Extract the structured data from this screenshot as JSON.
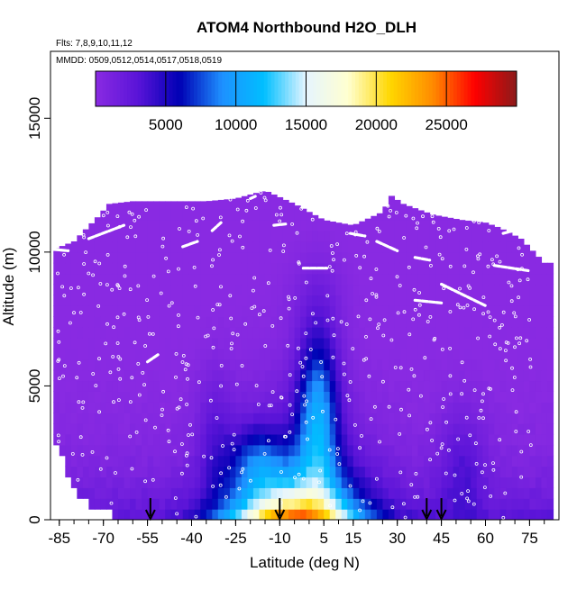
{
  "chart_data": {
    "type": "heatmap",
    "title": "ATOM4 Northbound H2O_DLH",
    "subtitle_flights": "Flts: 7,8,9,10,11,12",
    "subtitle_dates": "MMDD: 0509,0512,0514,0517,0518,0519",
    "xlabel": "Latitude (deg N)",
    "ylabel": "Altitude (m)",
    "xlim": [
      -88,
      85
    ],
    "ylim": [
      0,
      17500
    ],
    "x_ticks": [
      -85,
      -70,
      -55,
      -40,
      -25,
      -10,
      5,
      15,
      30,
      45,
      60,
      75
    ],
    "x_tick_labels": [
      "-85",
      "-70",
      "-55",
      "-40",
      "-25",
      "-10",
      "5",
      "15",
      "30",
      "45",
      "60",
      "75"
    ],
    "y_ticks": [
      0,
      5000,
      10000,
      15000
    ],
    "y_tick_labels": [
      "0",
      "5000",
      "10000",
      "15000"
    ],
    "colorbar": {
      "range": [
        0,
        30000
      ],
      "ticks": [
        5000,
        10000,
        15000,
        20000,
        25000
      ],
      "tick_labels": [
        "5000",
        "10000",
        "15000",
        "20000",
        "25000"
      ],
      "colors": [
        "#8a2be2",
        "#5a14d8",
        "#0000b4",
        "#1e90ff",
        "#00bfff",
        "#e6f5ff",
        "#ffffd0",
        "#ffd700",
        "#ff8c00",
        "#ff0000",
        "#8b1a1a"
      ]
    },
    "grid": false,
    "legend": "colorbar at top",
    "arrow_latitudes": [
      -54,
      -10,
      40,
      45
    ],
    "profile_envelope": [
      [
        -87,
        10100
      ],
      [
        -80,
        10400
      ],
      [
        -72,
        11300
      ],
      [
        -68,
        11800
      ],
      [
        -60,
        11900
      ],
      [
        -45,
        11900
      ],
      [
        -35,
        11900
      ],
      [
        -25,
        12000
      ],
      [
        -15,
        12300
      ],
      [
        -5,
        11800
      ],
      [
        5,
        11200
      ],
      [
        15,
        11000
      ],
      [
        25,
        11500
      ],
      [
        28,
        12100
      ],
      [
        32,
        11800
      ],
      [
        42,
        11400
      ],
      [
        52,
        11200
      ],
      [
        60,
        11100
      ],
      [
        65,
        10900
      ],
      [
        72,
        10500
      ],
      [
        80,
        9600
      ]
    ],
    "profile_floor": [
      [
        -87,
        3300
      ],
      [
        -79,
        1000
      ],
      [
        -72,
        600
      ],
      [
        -65,
        300
      ],
      [
        -60,
        200
      ]
    ],
    "white_track_segments": [
      [
        [
          -87,
          10100
        ],
        [
          -82,
          10050
        ]
      ],
      [
        [
          -75,
          10500
        ],
        [
          -63,
          11000
        ]
      ],
      [
        [
          -43,
          10200
        ],
        [
          -38,
          10400
        ]
      ],
      [
        [
          -33,
          10800
        ],
        [
          -30,
          11100
        ]
      ],
      [
        [
          -20,
          12000
        ],
        [
          -18,
          12100
        ]
      ],
      [
        [
          -12,
          11000
        ],
        [
          -8,
          11050
        ]
      ],
      [
        [
          -2,
          9400
        ],
        [
          6,
          9400
        ]
      ],
      [
        [
          14,
          10700
        ],
        [
          19,
          10600
        ]
      ],
      [
        [
          23,
          10400
        ],
        [
          30,
          10050
        ]
      ],
      [
        [
          36,
          9800
        ],
        [
          41,
          9700
        ]
      ],
      [
        [
          45,
          8800
        ],
        [
          60,
          8000
        ]
      ],
      [
        [
          36,
          8200
        ],
        [
          45,
          8100
        ]
      ],
      [
        [
          66,
          10700
        ],
        [
          73,
          10900
        ]
      ],
      [
        [
          63,
          9500
        ],
        [
          75,
          9300
        ]
      ],
      [
        [
          -55,
          5900
        ],
        [
          -51,
          6200
        ]
      ]
    ]
  }
}
